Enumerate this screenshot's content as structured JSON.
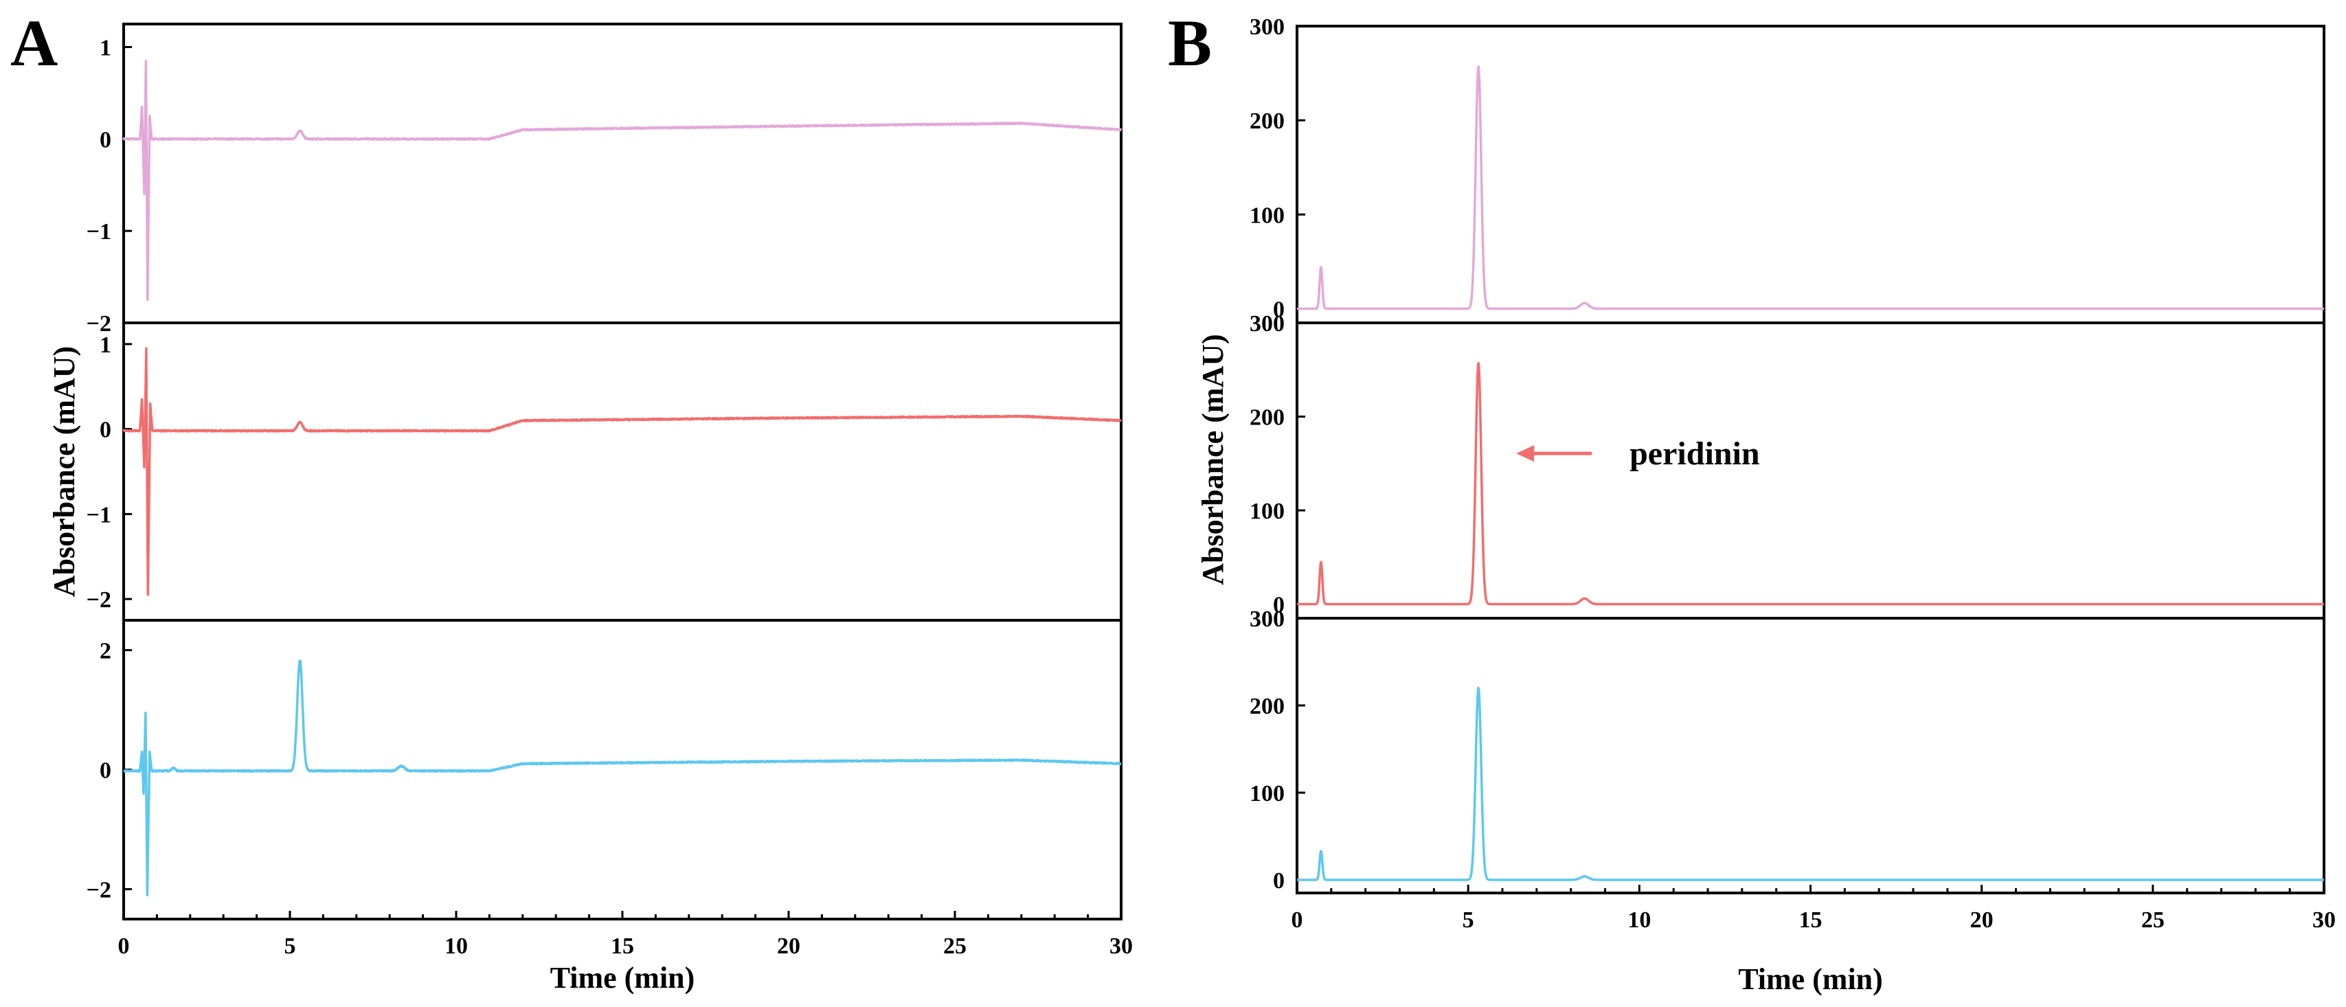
{
  "colors": {
    "pink": "#E3A8D8",
    "red": "#F26D6D",
    "blue": "#5CC8F0",
    "axis": "#000000"
  },
  "chart_data": [
    {
      "panel": "A",
      "type": "line",
      "xlabel": "Time (min)",
      "ylabel": "Absorbance (mAU)",
      "xlim": [
        0,
        30
      ],
      "xticks": [
        0,
        5,
        10,
        15,
        20,
        25,
        30
      ],
      "xtick_labels": [
        "0",
        "5",
        "10",
        "15",
        "20",
        "25",
        "30"
      ],
      "stacked": true,
      "subplots": [
        {
          "name": "trace-1",
          "color": "pink",
          "ylim": [
            -2,
            1.25
          ],
          "yticks": [
            -2,
            -1,
            0,
            1
          ],
          "ytick_labels": [
            "−2",
            "−1",
            "0",
            "1"
          ],
          "baseline": [
            [
              0,
              0
            ],
            [
              11,
              0
            ],
            [
              12,
              0.1
            ],
            [
              20,
              0.14
            ],
            [
              27,
              0.17
            ],
            [
              30,
              0.1
            ]
          ],
          "peaks": [
            [
              5.3,
              0.09,
              0.08
            ]
          ],
          "spikes": [
            [
              0.55,
              0.35
            ],
            [
              0.62,
              -0.6
            ],
            [
              0.67,
              0.85
            ],
            [
              0.72,
              -1.75
            ],
            [
              0.78,
              0.25
            ]
          ]
        },
        {
          "name": "trace-2",
          "color": "red",
          "ylim": [
            -2.25,
            1.25
          ],
          "yticks": [
            -2,
            -1,
            0,
            1
          ],
          "ytick_labels": [
            "−2",
            "−1",
            "0",
            "1"
          ],
          "baseline": [
            [
              0,
              -0.02
            ],
            [
              11,
              -0.02
            ],
            [
              12,
              0.1
            ],
            [
              20,
              0.13
            ],
            [
              27,
              0.15
            ],
            [
              30,
              0.1
            ]
          ],
          "peaks": [
            [
              5.3,
              0.1,
              0.08
            ]
          ],
          "spikes": [
            [
              0.55,
              0.35
            ],
            [
              0.62,
              -0.45
            ],
            [
              0.68,
              0.95
            ],
            [
              0.73,
              -1.95
            ],
            [
              0.8,
              0.3
            ]
          ]
        },
        {
          "name": "trace-3",
          "color": "blue",
          "ylim": [
            -2.5,
            2.5
          ],
          "yticks": [
            -2,
            0,
            2
          ],
          "ytick_labels": [
            "−2",
            "0",
            "2"
          ],
          "baseline": [
            [
              0,
              -0.02
            ],
            [
              11,
              -0.02
            ],
            [
              12,
              0.1
            ],
            [
              20,
              0.14
            ],
            [
              27,
              0.16
            ],
            [
              30,
              0.1
            ]
          ],
          "peaks": [
            [
              5.3,
              1.85,
              0.08
            ],
            [
              8.35,
              0.08,
              0.1
            ],
            [
              1.5,
              0.05,
              0.05
            ]
          ],
          "spikes": [
            [
              0.55,
              0.3
            ],
            [
              0.6,
              -0.4
            ],
            [
              0.66,
              0.95
            ],
            [
              0.71,
              -2.1
            ],
            [
              0.78,
              0.3
            ]
          ]
        }
      ]
    },
    {
      "panel": "B",
      "type": "line",
      "xlabel": "Time (min)",
      "ylabel": "Absorbance (mAU)",
      "xlim": [
        0,
        30
      ],
      "xticks": [
        0,
        5,
        10,
        15,
        20,
        25,
        30
      ],
      "xtick_labels": [
        "0",
        "5",
        "10",
        "15",
        "20",
        "25",
        "30"
      ],
      "stacked": true,
      "subplots": [
        {
          "name": "trace-1",
          "color": "pink",
          "ylim": [
            -15,
            300
          ],
          "yticks": [
            0,
            100,
            200,
            300
          ],
          "ytick_labels": [
            "0",
            "100",
            "200",
            "300"
          ],
          "baseline": [
            [
              0,
              0
            ],
            [
              30,
              0
            ]
          ],
          "peaks": [
            [
              5.3,
              257,
              0.08
            ],
            [
              0.7,
              44,
              0.04
            ],
            [
              8.4,
              6,
              0.12
            ]
          ]
        },
        {
          "name": "trace-2",
          "color": "red",
          "ylim": [
            -15,
            300
          ],
          "yticks": [
            0,
            100,
            200,
            300
          ],
          "ytick_labels": [
            "0",
            "100",
            "200",
            "300"
          ],
          "baseline": [
            [
              0,
              0
            ],
            [
              30,
              0
            ]
          ],
          "peaks": [
            [
              5.3,
              257,
              0.08
            ],
            [
              0.7,
              45,
              0.04
            ],
            [
              8.4,
              6,
              0.12
            ]
          ],
          "annotation": {
            "text": "peridinin",
            "arrow_to": [
              5.3,
              190
            ]
          }
        },
        {
          "name": "trace-3",
          "color": "blue",
          "ylim": [
            -15,
            300
          ],
          "yticks": [
            0,
            100,
            200,
            300
          ],
          "ytick_labels": [
            "0",
            "100",
            "200",
            "300"
          ],
          "baseline": [
            [
              0,
              0
            ],
            [
              30,
              0
            ]
          ],
          "peaks": [
            [
              5.3,
              220,
              0.08
            ],
            [
              0.7,
              33,
              0.04
            ],
            [
              8.4,
              4,
              0.12
            ]
          ]
        }
      ]
    }
  ]
}
